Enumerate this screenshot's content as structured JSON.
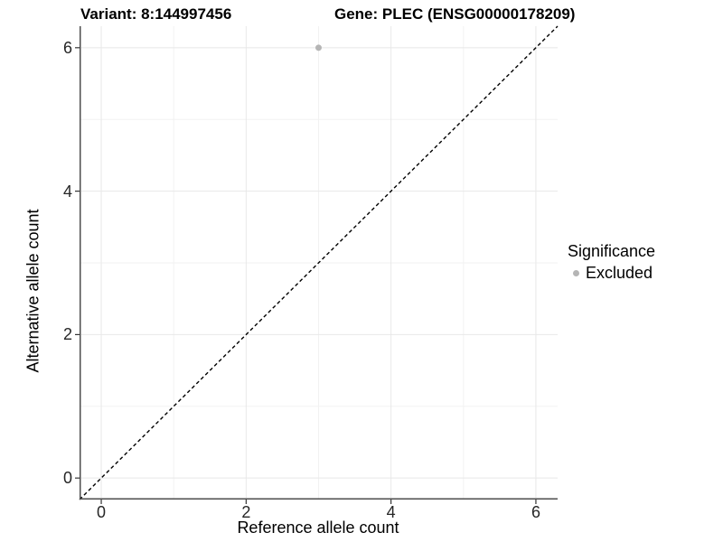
{
  "header": {
    "variant_title": "Variant: 8:144997456",
    "gene_title": "Gene: PLEC (ENSG00000178209)"
  },
  "chart_data": {
    "type": "scatter",
    "xlabel": "Reference allele count",
    "ylabel": "Alternative allele count",
    "xlim": [
      -0.3,
      6.3
    ],
    "ylim": [
      -0.3,
      6.3
    ],
    "x_ticks": [
      0,
      2,
      4,
      6
    ],
    "y_ticks": [
      0,
      2,
      4,
      6
    ],
    "x_minor_ticks": [
      1,
      3,
      5
    ],
    "y_minor_ticks": [
      1,
      3,
      5
    ],
    "grid": true,
    "reference_line": {
      "type": "identity",
      "style": "dashed",
      "color": "#000000"
    },
    "series": [
      {
        "name": "Excluded",
        "color": "#b5b5b5",
        "points": [
          {
            "x": 3,
            "y": 6
          }
        ]
      }
    ],
    "legend": {
      "title": "Significance",
      "position": "right",
      "items": [
        {
          "label": "Excluded",
          "color": "#b5b5b5"
        }
      ]
    },
    "colors": {
      "grid_major": "#e8e8e8",
      "grid_minor": "#f2f2f2",
      "axis_line": "#4d4d4d",
      "tick_mark": "#333333"
    }
  }
}
